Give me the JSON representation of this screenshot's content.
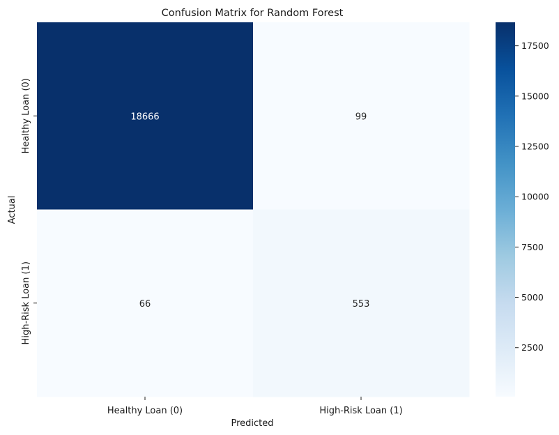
{
  "chart_data": {
    "type": "heatmap",
    "title": "Confusion Matrix for Random Forest",
    "xlabel": "Predicted",
    "ylabel": "Actual",
    "x_categories": [
      "Healthy Loan (0)",
      "High-Risk Loan (1)"
    ],
    "y_categories": [
      "Healthy Loan (0)",
      "High-Risk Loan (1)"
    ],
    "values": [
      [
        18666,
        99
      ],
      [
        66,
        553
      ]
    ],
    "colormap": "Blues",
    "colorbar": {
      "min": 66,
      "max": 18666,
      "ticks": [
        2500,
        5000,
        7500,
        10000,
        12500,
        15000,
        17500
      ]
    },
    "grid": false,
    "legend": "colorbar-right"
  }
}
